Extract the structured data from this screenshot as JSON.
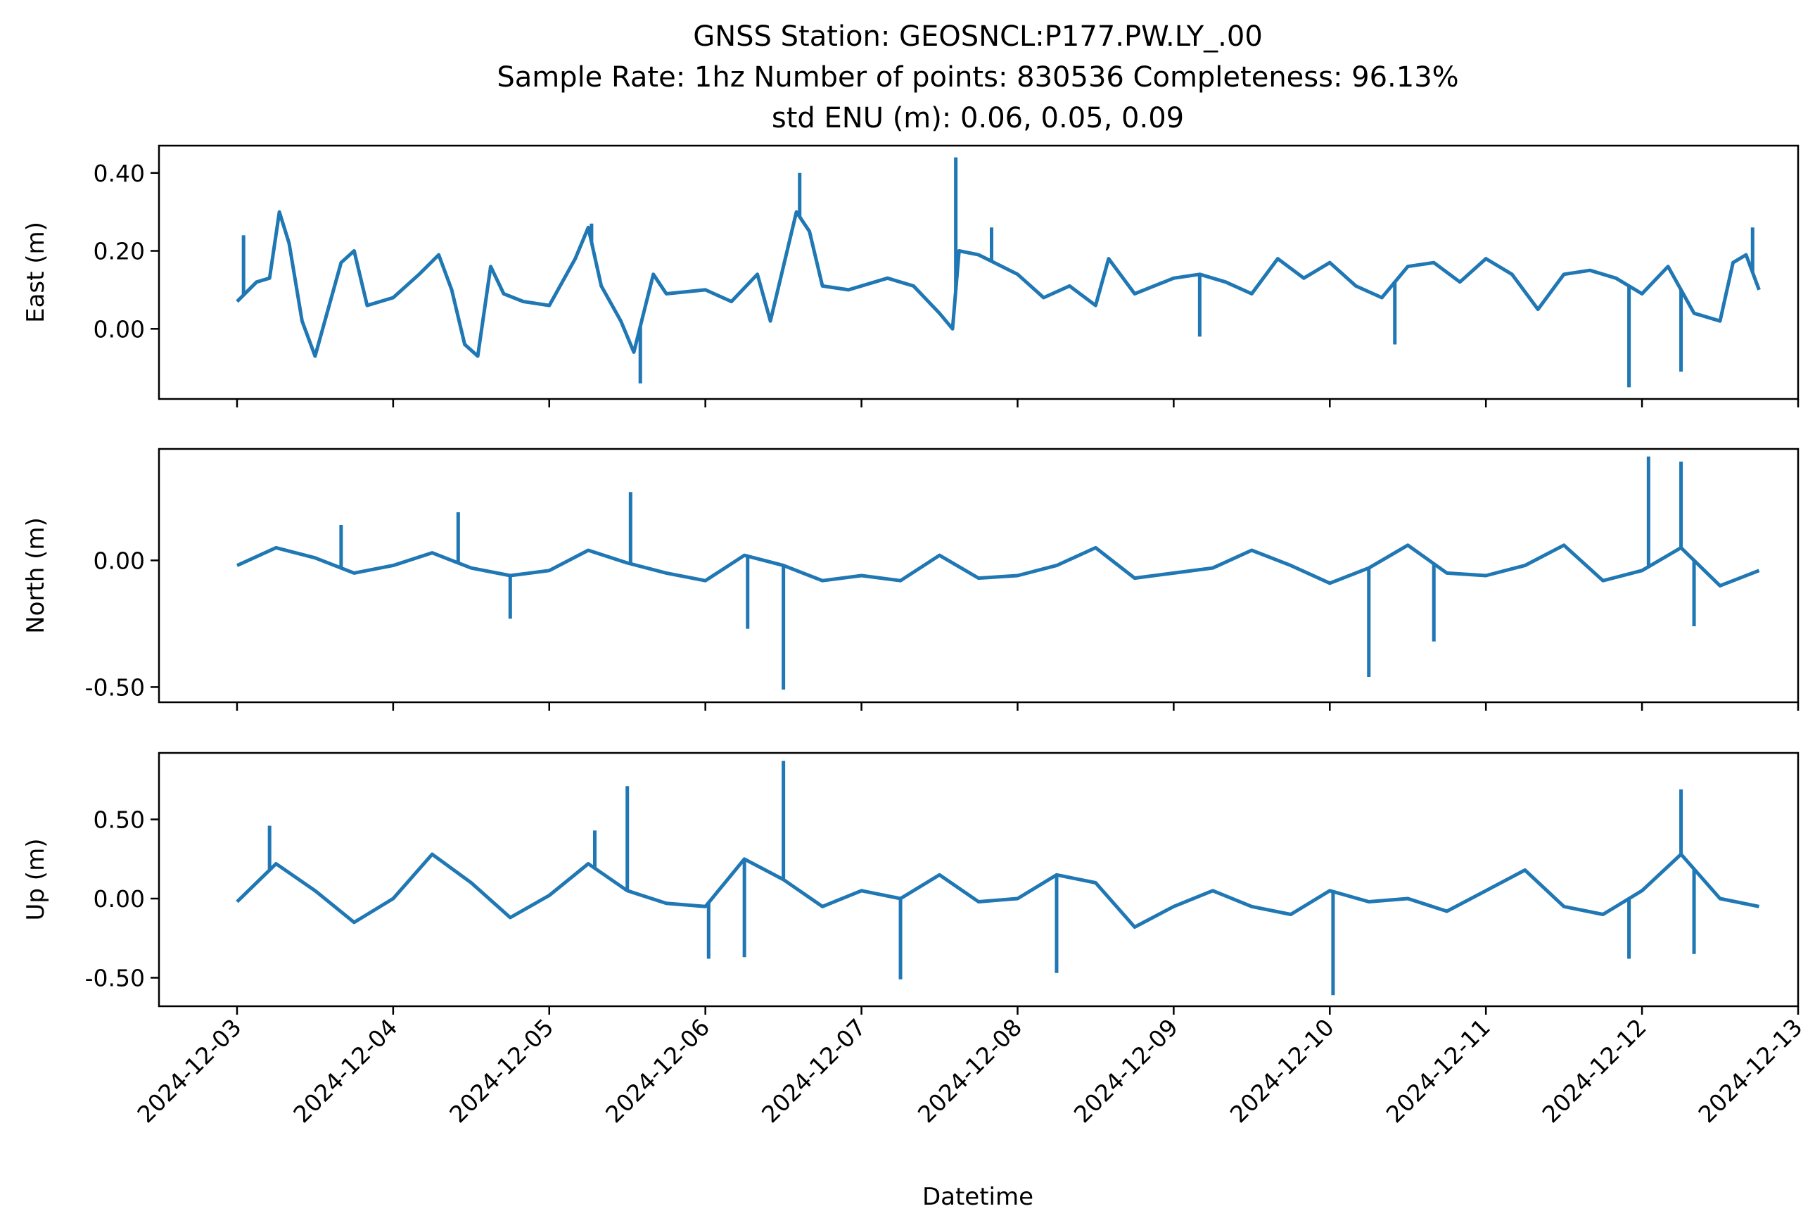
{
  "chart_data": {
    "type": "line",
    "title": [
      "GNSS Station: GEOSNCL:P177.PW.LY_.00",
      "Sample Rate: 1hz   Number of points: 830536    Completeness:  96.13%",
      "std ENU (m):  0.06, 0.05, 0.09"
    ],
    "xlabel": "Datetime",
    "x_ticks": [
      "2024-12-03",
      "2024-12-04",
      "2024-12-05",
      "2024-12-06",
      "2024-12-07",
      "2024-12-08",
      "2024-12-09",
      "2024-12-10",
      "2024-12-11",
      "2024-12-12",
      "2024-12-13"
    ],
    "xlim": [
      "2024-12-02 12:00",
      "2024-12-13 00:00"
    ],
    "line_color": "#1f77b4",
    "panels": [
      {
        "ylabel": "East (m)",
        "ylim": [
          -0.18,
          0.47
        ],
        "y_ticks": [
          0.4,
          0.2,
          0.0
        ],
        "y_tick_labels": [
          "0.40",
          "0.20",
          "0.00"
        ],
        "series": [
          [
            "2024-12-03 00:00",
            0.07
          ],
          [
            "2024-12-03 03:00",
            0.12
          ],
          [
            "2024-12-03 05:00",
            0.13
          ],
          [
            "2024-12-03 06:30",
            0.3
          ],
          [
            "2024-12-03 08:00",
            0.22
          ],
          [
            "2024-12-03 10:00",
            0.02
          ],
          [
            "2024-12-03 12:00",
            -0.07
          ],
          [
            "2024-12-03 14:00",
            0.05
          ],
          [
            "2024-12-03 16:00",
            0.17
          ],
          [
            "2024-12-03 18:00",
            0.2
          ],
          [
            "2024-12-03 20:00",
            0.06
          ],
          [
            "2024-12-04 00:00",
            0.08
          ],
          [
            "2024-12-04 04:00",
            0.14
          ],
          [
            "2024-12-04 07:00",
            0.19
          ],
          [
            "2024-12-04 09:00",
            0.1
          ],
          [
            "2024-12-04 11:00",
            -0.04
          ],
          [
            "2024-12-04 13:00",
            -0.07
          ],
          [
            "2024-12-04 15:00",
            0.16
          ],
          [
            "2024-12-04 17:00",
            0.09
          ],
          [
            "2024-12-04 20:00",
            0.07
          ],
          [
            "2024-12-05 00:00",
            0.06
          ],
          [
            "2024-12-05 04:00",
            0.18
          ],
          [
            "2024-12-05 06:00",
            0.26
          ],
          [
            "2024-12-05 08:00",
            0.11
          ],
          [
            "2024-12-05 11:00",
            0.02
          ],
          [
            "2024-12-05 13:00",
            -0.06
          ],
          [
            "2024-12-05 16:00",
            0.14
          ],
          [
            "2024-12-05 18:00",
            0.09
          ],
          [
            "2024-12-06 00:00",
            0.1
          ],
          [
            "2024-12-06 04:00",
            0.07
          ],
          [
            "2024-12-06 08:00",
            0.14
          ],
          [
            "2024-12-06 10:00",
            0.02
          ],
          [
            "2024-12-06 14:00",
            0.3
          ],
          [
            "2024-12-06 16:00",
            0.25
          ],
          [
            "2024-12-06 18:00",
            0.11
          ],
          [
            "2024-12-06 22:00",
            0.1
          ],
          [
            "2024-12-07 04:00",
            0.13
          ],
          [
            "2024-12-07 08:00",
            0.11
          ],
          [
            "2024-12-07 12:00",
            0.04
          ],
          [
            "2024-12-07 14:00",
            0.0
          ],
          [
            "2024-12-07 15:00",
            0.2
          ],
          [
            "2024-12-07 18:00",
            0.19
          ],
          [
            "2024-12-08 00:00",
            0.14
          ],
          [
            "2024-12-08 04:00",
            0.08
          ],
          [
            "2024-12-08 08:00",
            0.11
          ],
          [
            "2024-12-08 12:00",
            0.06
          ],
          [
            "2024-12-08 14:00",
            0.18
          ],
          [
            "2024-12-08 18:00",
            0.09
          ],
          [
            "2024-12-09 00:00",
            0.13
          ],
          [
            "2024-12-09 04:00",
            0.14
          ],
          [
            "2024-12-09 08:00",
            0.12
          ],
          [
            "2024-12-09 12:00",
            0.09
          ],
          [
            "2024-12-09 16:00",
            0.18
          ],
          [
            "2024-12-09 20:00",
            0.13
          ],
          [
            "2024-12-10 00:00",
            0.17
          ],
          [
            "2024-12-10 04:00",
            0.11
          ],
          [
            "2024-12-10 08:00",
            0.08
          ],
          [
            "2024-12-10 12:00",
            0.16
          ],
          [
            "2024-12-10 16:00",
            0.17
          ],
          [
            "2024-12-10 20:00",
            0.12
          ],
          [
            "2024-12-11 00:00",
            0.18
          ],
          [
            "2024-12-11 04:00",
            0.14
          ],
          [
            "2024-12-11 08:00",
            0.05
          ],
          [
            "2024-12-11 12:00",
            0.14
          ],
          [
            "2024-12-11 16:00",
            0.15
          ],
          [
            "2024-12-11 20:00",
            0.13
          ],
          [
            "2024-12-12 00:00",
            0.09
          ],
          [
            "2024-12-12 04:00",
            0.16
          ],
          [
            "2024-12-12 08:00",
            0.04
          ],
          [
            "2024-12-12 12:00",
            0.02
          ],
          [
            "2024-12-12 14:00",
            0.17
          ],
          [
            "2024-12-12 16:00",
            0.19
          ],
          [
            "2024-12-12 18:00",
            0.1
          ]
        ],
        "spikes": [
          [
            "2024-12-03 01:00",
            0.24
          ],
          [
            "2024-12-05 06:30",
            0.27
          ],
          [
            "2024-12-05 14:00",
            -0.14
          ],
          [
            "2024-12-06 14:30",
            0.4
          ],
          [
            "2024-12-07 14:30",
            0.44
          ],
          [
            "2024-12-07 20:00",
            0.26
          ],
          [
            "2024-12-09 04:00",
            -0.02
          ],
          [
            "2024-12-10 10:00",
            -0.04
          ],
          [
            "2024-12-11 22:00",
            -0.15
          ],
          [
            "2024-12-12 06:00",
            -0.11
          ],
          [
            "2024-12-12 17:00",
            0.26
          ]
        ]
      },
      {
        "ylabel": "North (m)",
        "ylim": [
          -0.56,
          0.44
        ],
        "y_ticks": [
          0.0,
          -0.5
        ],
        "y_tick_labels": [
          "0.00",
          "-0.50"
        ],
        "series": [
          [
            "2024-12-03 00:00",
            -0.02
          ],
          [
            "2024-12-03 06:00",
            0.05
          ],
          [
            "2024-12-03 12:00",
            0.01
          ],
          [
            "2024-12-03 18:00",
            -0.05
          ],
          [
            "2024-12-04 00:00",
            -0.02
          ],
          [
            "2024-12-04 06:00",
            0.03
          ],
          [
            "2024-12-04 12:00",
            -0.03
          ],
          [
            "2024-12-04 18:00",
            -0.06
          ],
          [
            "2024-12-05 00:00",
            -0.04
          ],
          [
            "2024-12-05 06:00",
            0.04
          ],
          [
            "2024-12-05 12:00",
            -0.01
          ],
          [
            "2024-12-05 18:00",
            -0.05
          ],
          [
            "2024-12-06 00:00",
            -0.08
          ],
          [
            "2024-12-06 06:00",
            0.02
          ],
          [
            "2024-12-06 12:00",
            -0.02
          ],
          [
            "2024-12-06 18:00",
            -0.08
          ],
          [
            "2024-12-07 00:00",
            -0.06
          ],
          [
            "2024-12-07 06:00",
            -0.08
          ],
          [
            "2024-12-07 12:00",
            0.02
          ],
          [
            "2024-12-07 18:00",
            -0.07
          ],
          [
            "2024-12-08 00:00",
            -0.06
          ],
          [
            "2024-12-08 06:00",
            -0.02
          ],
          [
            "2024-12-08 12:00",
            0.05
          ],
          [
            "2024-12-08 18:00",
            -0.07
          ],
          [
            "2024-12-09 00:00",
            -0.05
          ],
          [
            "2024-12-09 06:00",
            -0.03
          ],
          [
            "2024-12-09 12:00",
            0.04
          ],
          [
            "2024-12-09 18:00",
            -0.02
          ],
          [
            "2024-12-10 00:00",
            -0.09
          ],
          [
            "2024-12-10 06:00",
            -0.03
          ],
          [
            "2024-12-10 12:00",
            0.06
          ],
          [
            "2024-12-10 18:00",
            -0.05
          ],
          [
            "2024-12-11 00:00",
            -0.06
          ],
          [
            "2024-12-11 06:00",
            -0.02
          ],
          [
            "2024-12-11 12:00",
            0.06
          ],
          [
            "2024-12-11 18:00",
            -0.08
          ],
          [
            "2024-12-12 00:00",
            -0.04
          ],
          [
            "2024-12-12 06:00",
            0.05
          ],
          [
            "2024-12-12 12:00",
            -0.1
          ],
          [
            "2024-12-12 18:00",
            -0.04
          ]
        ],
        "spikes": [
          [
            "2024-12-03 16:00",
            0.14
          ],
          [
            "2024-12-04 10:00",
            0.19
          ],
          [
            "2024-12-04 18:00",
            -0.23
          ],
          [
            "2024-12-05 12:30",
            0.27
          ],
          [
            "2024-12-06 06:30",
            -0.27
          ],
          [
            "2024-12-06 12:00",
            -0.51
          ],
          [
            "2024-12-10 06:00",
            -0.46
          ],
          [
            "2024-12-10 16:00",
            -0.32
          ],
          [
            "2024-12-12 01:00",
            0.41
          ],
          [
            "2024-12-12 06:00",
            0.39
          ],
          [
            "2024-12-12 08:00",
            -0.26
          ]
        ]
      },
      {
        "ylabel": "Up (m)",
        "ylim": [
          -0.68,
          0.92
        ],
        "y_ticks": [
          0.5,
          0.0,
          -0.5
        ],
        "y_tick_labels": [
          "0.50",
          "0.00",
          "-0.50"
        ],
        "series": [
          [
            "2024-12-03 00:00",
            -0.02
          ],
          [
            "2024-12-03 06:00",
            0.22
          ],
          [
            "2024-12-03 12:00",
            0.05
          ],
          [
            "2024-12-03 18:00",
            -0.15
          ],
          [
            "2024-12-04 00:00",
            0.0
          ],
          [
            "2024-12-04 06:00",
            0.28
          ],
          [
            "2024-12-04 12:00",
            0.1
          ],
          [
            "2024-12-04 18:00",
            -0.12
          ],
          [
            "2024-12-05 00:00",
            0.02
          ],
          [
            "2024-12-05 06:00",
            0.22
          ],
          [
            "2024-12-05 12:00",
            0.05
          ],
          [
            "2024-12-05 18:00",
            -0.03
          ],
          [
            "2024-12-06 00:00",
            -0.05
          ],
          [
            "2024-12-06 06:00",
            0.25
          ],
          [
            "2024-12-06 12:00",
            0.12
          ],
          [
            "2024-12-06 18:00",
            -0.05
          ],
          [
            "2024-12-07 00:00",
            0.05
          ],
          [
            "2024-12-07 06:00",
            0.0
          ],
          [
            "2024-12-07 12:00",
            0.15
          ],
          [
            "2024-12-07 18:00",
            -0.02
          ],
          [
            "2024-12-08 00:00",
            0.0
          ],
          [
            "2024-12-08 06:00",
            0.15
          ],
          [
            "2024-12-08 12:00",
            0.1
          ],
          [
            "2024-12-08 18:00",
            -0.18
          ],
          [
            "2024-12-09 00:00",
            -0.05
          ],
          [
            "2024-12-09 06:00",
            0.05
          ],
          [
            "2024-12-09 12:00",
            -0.05
          ],
          [
            "2024-12-09 18:00",
            -0.1
          ],
          [
            "2024-12-10 00:00",
            0.05
          ],
          [
            "2024-12-10 06:00",
            -0.02
          ],
          [
            "2024-12-10 12:00",
            0.0
          ],
          [
            "2024-12-10 18:00",
            -0.08
          ],
          [
            "2024-12-11 00:00",
            0.05
          ],
          [
            "2024-12-11 06:00",
            0.18
          ],
          [
            "2024-12-11 12:00",
            -0.05
          ],
          [
            "2024-12-11 18:00",
            -0.1
          ],
          [
            "2024-12-12 00:00",
            0.05
          ],
          [
            "2024-12-12 06:00",
            0.28
          ],
          [
            "2024-12-12 12:00",
            0.0
          ],
          [
            "2024-12-12 18:00",
            -0.05
          ]
        ],
        "spikes": [
          [
            "2024-12-03 05:00",
            0.46
          ],
          [
            "2024-12-05 07:00",
            0.43
          ],
          [
            "2024-12-05 12:00",
            0.71
          ],
          [
            "2024-12-06 00:30",
            -0.38
          ],
          [
            "2024-12-06 06:00",
            -0.37
          ],
          [
            "2024-12-06 12:00",
            0.87
          ],
          [
            "2024-12-07 06:00",
            -0.51
          ],
          [
            "2024-12-08 06:00",
            -0.47
          ],
          [
            "2024-12-10 00:30",
            -0.61
          ],
          [
            "2024-12-11 22:00",
            -0.38
          ],
          [
            "2024-12-12 06:00",
            0.69
          ],
          [
            "2024-12-12 08:00",
            -0.35
          ]
        ]
      }
    ]
  }
}
